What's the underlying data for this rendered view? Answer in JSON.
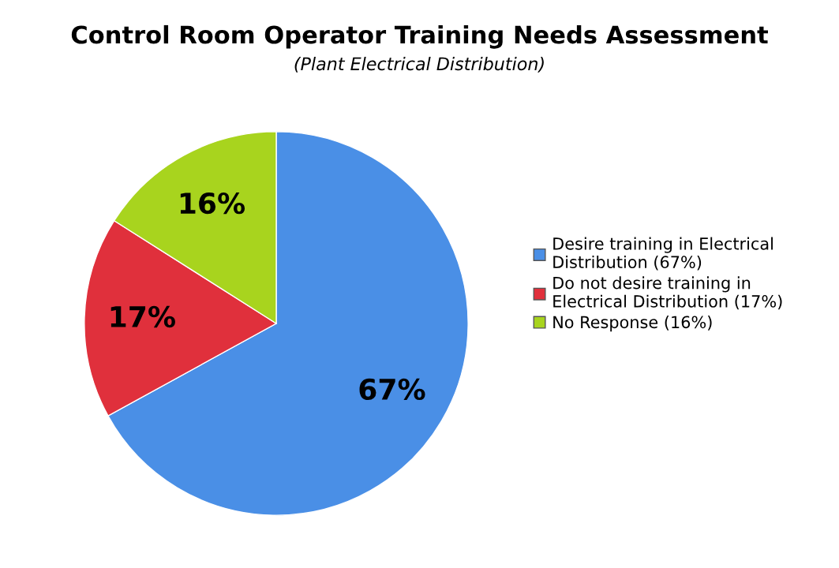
{
  "chart_data": {
    "type": "pie",
    "title": "Control Room Operator Training Needs Assessment",
    "subtitle": "(Plant Electrical Distribution)",
    "categories": [
      "Desire training in Electrical Distribution (67%)",
      "Do not desire training in Electrical Distribution (17%)",
      "No Response (16%)"
    ],
    "values": [
      67,
      17,
      16
    ],
    "colors": [
      "#4a8fe6",
      "#e0303c",
      "#a8d41e"
    ],
    "value_labels": [
      "67%",
      "17%",
      "16%"
    ],
    "legend": "right"
  }
}
